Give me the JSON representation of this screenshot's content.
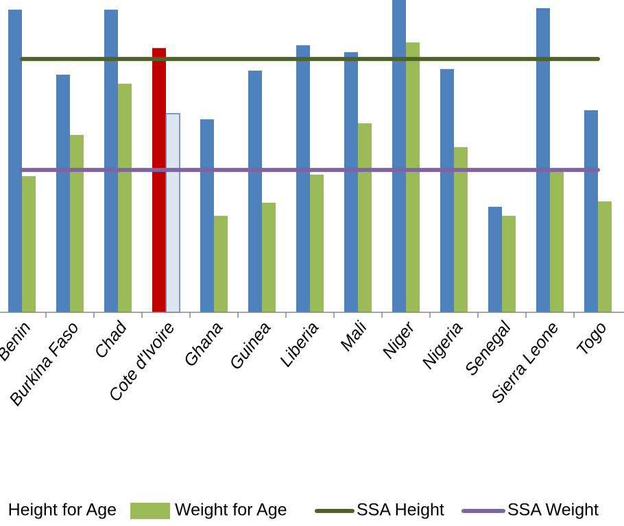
{
  "chart_data": {
    "type": "bar",
    "categories": [
      "Benin",
      "Burkina Faso",
      "Chad",
      "Cote d'Ivoire",
      "Ghana",
      "Guinea",
      "Liberia",
      "Mali",
      "Niger",
      "Nigeria",
      "Senegal",
      "Sierra Leone",
      "Togo"
    ],
    "ylim": [
      0,
      100
    ],
    "series": [
      {
        "name": "Height for Age",
        "color": "#4f81bd",
        "highlight": {
          "index": 3,
          "color": "#c00000"
        },
        "values": [
          96.9,
          76.1,
          96.9,
          84.6,
          61.8,
          77.4,
          85.5,
          83.3,
          100,
          77.9,
          33.8,
          97.4,
          64.7
        ]
      },
      {
        "name": "Weight for Age",
        "color": "#9bbb59",
        "highlight": {
          "index": 3,
          "color": "#dce6f2"
        },
        "values": [
          43.6,
          56.8,
          73.2,
          63.6,
          30.9,
          35.1,
          44.1,
          60.5,
          86.4,
          52.9,
          30.9,
          45.2,
          35.5
        ]
      }
    ],
    "reference_lines": [
      {
        "name": "SSA Height",
        "color": "#4f6228",
        "value": 81.1
      },
      {
        "name": "SSA Weight",
        "color": "#8064a2",
        "value": 45.6
      }
    ]
  }
}
